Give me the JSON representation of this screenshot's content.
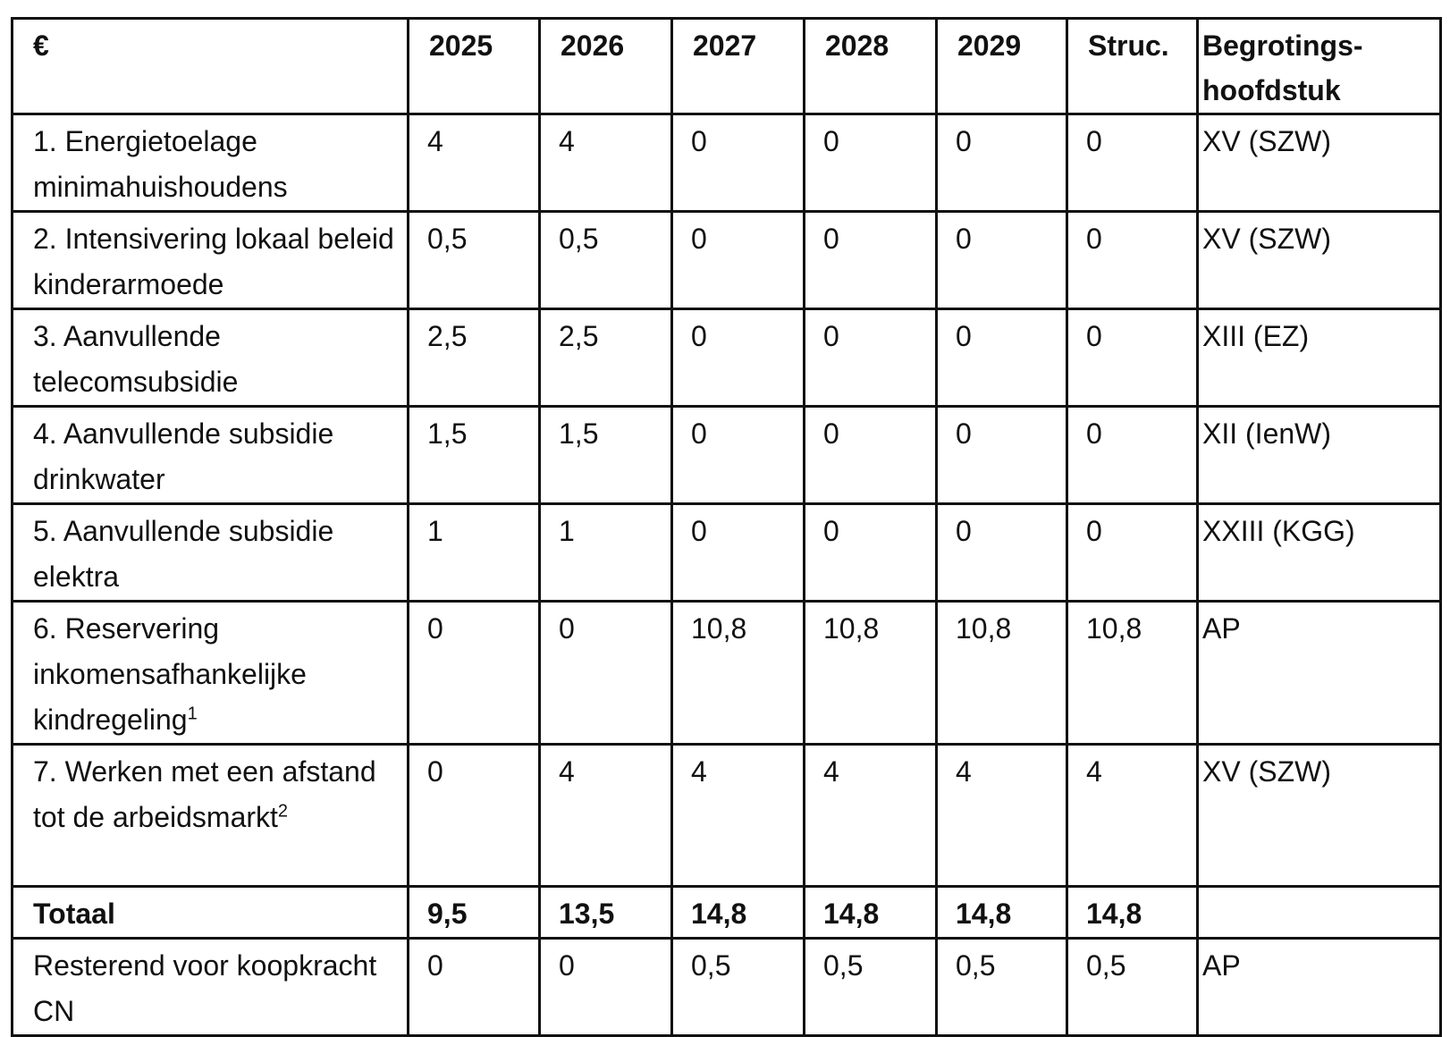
{
  "table": {
    "header": [
      "€",
      "2025",
      "2026",
      "2027",
      "2028",
      "2029",
      "Struc.",
      "Begrotings-hoofdstuk"
    ],
    "rows": [
      {
        "label": "1. Energietoelage minimahuishoudens",
        "cells": [
          "4",
          "4",
          "0",
          "0",
          "0",
          "0",
          "XV (SZW)"
        ]
      },
      {
        "label": "2. Intensivering lokaal beleid kinderarmoede",
        "cells": [
          "0,5",
          "0,5",
          "0",
          "0",
          "0",
          "0",
          "XV (SZW)"
        ]
      },
      {
        "label": "3. Aanvullende telecomsubsidie",
        "cells": [
          "2,5",
          "2,5",
          "0",
          "0",
          "0",
          "0",
          "XIII (EZ)"
        ]
      },
      {
        "label": "4. Aanvullende subsidie drinkwater",
        "cells": [
          "1,5",
          "1,5",
          "0",
          "0",
          "0",
          "0",
          "XII (IenW)"
        ]
      },
      {
        "label": "5. Aanvullende subsidie elektra",
        "cells": [
          "1",
          "1",
          "0",
          "0",
          "0",
          "0",
          "XXIII (KGG)"
        ]
      },
      {
        "label": "6. Reservering inkomensafhankelijke kindregeling",
        "footnote": "1",
        "cells": [
          "0",
          "0",
          "10,8",
          "10,8",
          "10,8",
          "10,8",
          "AP"
        ]
      },
      {
        "label": "7. Werken met een afstand tot de arbeidsmarkt",
        "footnote": "2",
        "cells": [
          "0",
          "4",
          "4",
          "4",
          "4",
          "4",
          "XV (SZW)"
        ]
      },
      {
        "label": "Totaal",
        "bold": true,
        "cells": [
          "9,5",
          "13,5",
          "14,8",
          "14,8",
          "14,8",
          "14,8",
          ""
        ]
      },
      {
        "label": "Resterend voor koopkracht CN",
        "cells": [
          "0",
          "0",
          "0,5",
          "0,5",
          "0,5",
          "0,5",
          "AP"
        ]
      }
    ]
  }
}
